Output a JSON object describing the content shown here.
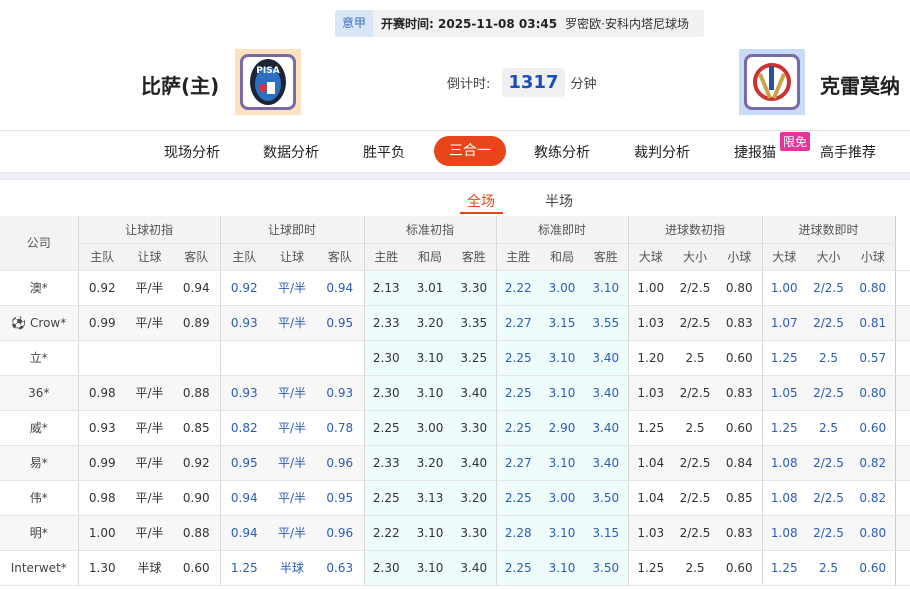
{
  "match": {
    "league": "意甲",
    "kickoff": "开赛时间: 2025-11-08 03:45",
    "venue": "罗密欧·安科内塔尼球场",
    "home": "比萨(主)",
    "away": "克雷莫纳",
    "home_logo_text": "PISA",
    "countdown_label": "倒计时:",
    "countdown_value": "1317",
    "countdown_unit": "分钟"
  },
  "nav": {
    "items": [
      "现场分析",
      "数据分析",
      "胜平负",
      "三合一",
      "教练分析",
      "裁判分析",
      "捷报猫",
      "高手推荐"
    ],
    "active": "三合一",
    "badge": "限免"
  },
  "subtabs": {
    "items": [
      "全场",
      "半场"
    ],
    "active": "全场"
  },
  "table": {
    "company_header": "公司",
    "groups": [
      "让球初指",
      "让球即时",
      "标准初指",
      "标准即时",
      "进球数初指",
      "进球数即时"
    ],
    "sub_headers": [
      "主队",
      "让球",
      "客队",
      "主队",
      "让球",
      "客队",
      "主胜",
      "和局",
      "客胜",
      "主胜",
      "和局",
      "客胜",
      "大球",
      "大小",
      "小球",
      "大球",
      "大小",
      "小球"
    ],
    "rows": [
      {
        "company": "澳*",
        "values": [
          "0.92",
          "平/半",
          "0.94",
          "0.92",
          "平/半",
          "0.94",
          "2.13",
          "3.01",
          "3.30",
          "2.22",
          "3.00",
          "3.10",
          "1.00",
          "2/2.5",
          "0.80",
          "1.00",
          "2/2.5",
          "0.80"
        ]
      },
      {
        "company": "Crow*",
        "icon": "soccer-ball-icon",
        "values": [
          "0.99",
          "平/半",
          "0.89",
          "0.93",
          "平/半",
          "0.95",
          "2.33",
          "3.20",
          "3.35",
          "2.27",
          "3.15",
          "3.55",
          "1.03",
          "2/2.5",
          "0.83",
          "1.07",
          "2/2.5",
          "0.81"
        ]
      },
      {
        "company": "立*",
        "values": [
          "",
          "",
          "",
          "",
          "",
          "",
          "2.30",
          "3.10",
          "3.25",
          "2.25",
          "3.10",
          "3.40",
          "1.20",
          "2.5",
          "0.60",
          "1.25",
          "2.5",
          "0.57"
        ]
      },
      {
        "company": "36*",
        "values": [
          "0.98",
          "平/半",
          "0.88",
          "0.93",
          "平/半",
          "0.93",
          "2.30",
          "3.10",
          "3.40",
          "2.25",
          "3.10",
          "3.40",
          "1.03",
          "2/2.5",
          "0.83",
          "1.05",
          "2/2.5",
          "0.80"
        ]
      },
      {
        "company": "威*",
        "values": [
          "0.93",
          "平/半",
          "0.85",
          "0.82",
          "平/半",
          "0.78",
          "2.25",
          "3.00",
          "3.30",
          "2.25",
          "2.90",
          "3.40",
          "1.25",
          "2.5",
          "0.60",
          "1.25",
          "2.5",
          "0.60"
        ]
      },
      {
        "company": "易*",
        "values": [
          "0.99",
          "平/半",
          "0.92",
          "0.95",
          "平/半",
          "0.96",
          "2.33",
          "3.20",
          "3.40",
          "2.27",
          "3.10",
          "3.40",
          "1.04",
          "2/2.5",
          "0.84",
          "1.08",
          "2/2.5",
          "0.82"
        ]
      },
      {
        "company": "伟*",
        "values": [
          "0.98",
          "平/半",
          "0.90",
          "0.94",
          "平/半",
          "0.95",
          "2.25",
          "3.13",
          "3.20",
          "2.25",
          "3.00",
          "3.50",
          "1.04",
          "2/2.5",
          "0.85",
          "1.08",
          "2/2.5",
          "0.82"
        ]
      },
      {
        "company": "明*",
        "values": [
          "1.00",
          "平/半",
          "0.88",
          "0.94",
          "平/半",
          "0.96",
          "2.22",
          "3.10",
          "3.30",
          "2.28",
          "3.10",
          "3.15",
          "1.03",
          "2/2.5",
          "0.83",
          "1.08",
          "2/2.5",
          "0.80"
        ]
      },
      {
        "company": "Interwet*",
        "values": [
          "1.30",
          "半球",
          "0.60",
          "1.25",
          "半球",
          "0.63",
          "2.30",
          "3.10",
          "3.40",
          "2.25",
          "3.10",
          "3.50",
          "1.25",
          "2.5",
          "0.60",
          "1.25",
          "2.5",
          "0.60"
        ]
      }
    ]
  },
  "colors": {
    "accent": "#e8461a",
    "live_value": "#2b5cb8",
    "standard_bg": "#effcfc",
    "badge": "#e6359a"
  }
}
